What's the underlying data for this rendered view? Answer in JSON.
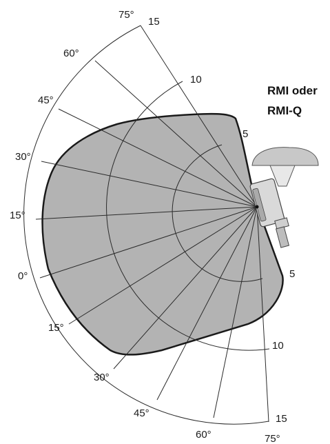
{
  "title_lines": [
    "RMI oder",
    "RMI-Q"
  ],
  "angle_labels": {
    "upper": [
      "75°",
      "60°",
      "45°",
      "30°",
      "15°"
    ],
    "center": "0°",
    "lower": [
      "15°",
      "30°",
      "45°",
      "60°",
      "75°"
    ]
  },
  "range_labels": {
    "upper": [
      "15",
      "10",
      "5"
    ],
    "lower": [
      "5",
      "10",
      "15"
    ]
  },
  "colors": {
    "coverage_fill": "#b3b3b3",
    "lines": "#2a2a2a",
    "housing": "#d9d9d9",
    "cap": "#c8c8c8"
  }
}
